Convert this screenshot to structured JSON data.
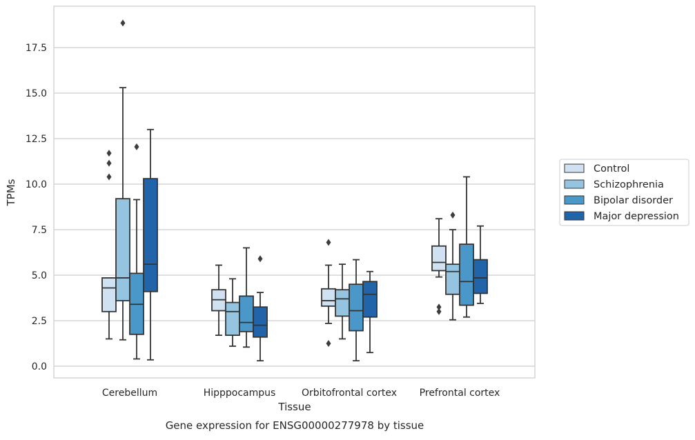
{
  "chart_data": {
    "type": "box",
    "title": "",
    "caption": "Gene expression for ENSG00000277978 by tissue",
    "xlabel": "Tissue",
    "ylabel": "TPMs",
    "categories": [
      "Cerebellum",
      "Hipppocampus",
      "Orbitofrontal cortex",
      "Prefrontal cortex"
    ],
    "ylim": [
      -0.6,
      19.8
    ],
    "yticks": [
      0.0,
      2.5,
      5.0,
      7.5,
      10.0,
      12.5,
      15.0,
      17.5
    ],
    "ytick_labels": [
      "0.0",
      "2.5",
      "5.0",
      "7.5",
      "10.0",
      "12.5",
      "15.0",
      "17.5"
    ],
    "grid": "horizontal",
    "legend_position": "right",
    "colors": {
      "Control": "#d0e1f2",
      "Schizophrenia": "#94c4df",
      "Bipolar disorder": "#4a98c9",
      "Major depression": "#2264aa",
      "grid": "#cccccc",
      "box_edge": "#333333"
    },
    "series": [
      {
        "name": "Control",
        "boxes": [
          {
            "whislo": 1.5,
            "q1": 3.0,
            "med": 4.3,
            "q3": 4.85,
            "whishi": 4.85,
            "fliers": [
              11.7,
              11.15,
              10.4
            ]
          },
          {
            "whislo": 1.7,
            "q1": 3.05,
            "med": 3.65,
            "q3": 4.2,
            "whishi": 5.55,
            "fliers": []
          },
          {
            "whislo": 2.35,
            "q1": 3.3,
            "med": 3.6,
            "q3": 4.25,
            "whishi": 5.55,
            "fliers": [
              6.8,
              1.25
            ]
          },
          {
            "whislo": 4.9,
            "q1": 5.25,
            "med": 5.7,
            "q3": 6.6,
            "whishi": 8.1,
            "fliers": [
              3.25,
              3.0
            ]
          }
        ]
      },
      {
        "name": "Schizophrenia",
        "boxes": [
          {
            "whislo": 1.45,
            "q1": 3.6,
            "med": 4.85,
            "q3": 9.2,
            "whishi": 15.3,
            "fliers": [
              18.85
            ]
          },
          {
            "whislo": 1.1,
            "q1": 1.7,
            "med": 3.0,
            "q3": 3.5,
            "whishi": 4.8,
            "fliers": []
          },
          {
            "whislo": 1.5,
            "q1": 2.75,
            "med": 3.7,
            "q3": 4.2,
            "whishi": 5.6,
            "fliers": []
          },
          {
            "whislo": 2.55,
            "q1": 3.95,
            "med": 5.2,
            "q3": 5.6,
            "whishi": 7.5,
            "fliers": [
              8.3
            ]
          }
        ]
      },
      {
        "name": "Bipolar disorder",
        "boxes": [
          {
            "whislo": 0.4,
            "q1": 1.75,
            "med": 3.4,
            "q3": 5.1,
            "whishi": 9.15,
            "fliers": [
              12.05
            ]
          },
          {
            "whislo": 1.05,
            "q1": 1.9,
            "med": 2.4,
            "q3": 3.85,
            "whishi": 6.5,
            "fliers": []
          },
          {
            "whislo": 0.3,
            "q1": 1.95,
            "med": 3.05,
            "q3": 4.5,
            "whishi": 5.85,
            "fliers": []
          },
          {
            "whislo": 2.7,
            "q1": 3.35,
            "med": 4.65,
            "q3": 6.7,
            "whishi": 10.4,
            "fliers": []
          }
        ]
      },
      {
        "name": "Major depression",
        "boxes": [
          {
            "whislo": 0.35,
            "q1": 4.1,
            "med": 5.6,
            "q3": 10.3,
            "whishi": 13.0,
            "fliers": []
          },
          {
            "whislo": 0.3,
            "q1": 1.6,
            "med": 2.25,
            "q3": 3.25,
            "whishi": 4.05,
            "fliers": [
              5.9
            ]
          },
          {
            "whislo": 0.75,
            "q1": 2.7,
            "med": 3.95,
            "q3": 4.65,
            "whishi": 5.2,
            "fliers": []
          },
          {
            "whislo": 3.45,
            "q1": 4.0,
            "med": 4.85,
            "q3": 5.85,
            "whishi": 7.7,
            "fliers": []
          }
        ]
      }
    ]
  }
}
